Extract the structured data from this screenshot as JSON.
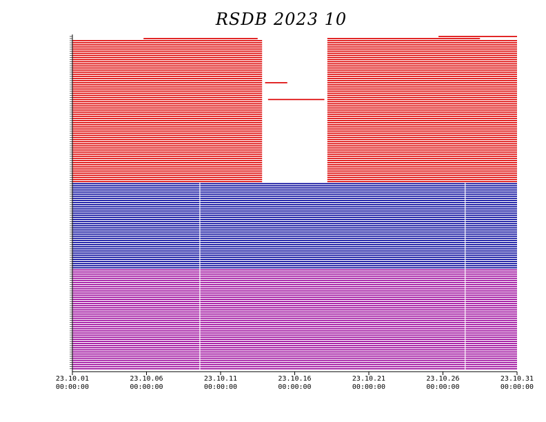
{
  "chart_data": {
    "type": "bar",
    "title": "RSDB  2023  10",
    "x_range": [
      "2023-10-01",
      "2023-10-31"
    ],
    "x_ticks": [
      {
        "date": "2023-10-01",
        "line1": "23.10.01",
        "line2": "00:00:00"
      },
      {
        "date": "2023-10-06",
        "line1": "23.10.06",
        "line2": "00:00:00"
      },
      {
        "date": "2023-10-11",
        "line1": "23.10.11",
        "line2": "00:00:00"
      },
      {
        "date": "2023-10-16",
        "line1": "23.10.16",
        "line2": "00:00:00"
      },
      {
        "date": "2023-10-21",
        "line1": "23.10.21",
        "line2": "00:00:00"
      },
      {
        "date": "2023-10-26",
        "line1": "23.10.26",
        "line2": "00:00:00"
      },
      {
        "date": "2023-10-31",
        "line1": "23.10.31",
        "line2": "00:00:00"
      }
    ],
    "groups": [
      {
        "color": "#dd0000",
        "rows": 70,
        "default_intervals": [
          [
            "2023-10-01",
            "2023-10-13.8"
          ],
          [
            "2023-10-18.2",
            "2023-10-31"
          ]
        ],
        "special_rows": [
          {
            "row": 0,
            "intervals": [
              [
                "2023-10-25.7",
                "2023-10-31"
              ]
            ]
          },
          {
            "row": 1,
            "intervals": [
              [
                "2023-10-05.8",
                "2023-10-13.5"
              ],
              [
                "2023-10-18.2",
                "2023-10-28.5"
              ]
            ]
          },
          {
            "row": 22,
            "intervals": [
              [
                "2023-10-01",
                "2023-10-13.8"
              ],
              [
                "2023-10-14",
                "2023-10-15.5"
              ],
              [
                "2023-10-18.2",
                "2023-10-31"
              ]
            ]
          },
          {
            "row": 30,
            "intervals": [
              [
                "2023-10-01",
                "2023-10-13.8"
              ],
              [
                "2023-10-14.2",
                "2023-10-18"
              ],
              [
                "2023-10-18.2",
                "2023-10-31"
              ]
            ]
          }
        ]
      },
      {
        "color": "#000099",
        "rows": 41,
        "default_intervals": [
          [
            "2023-10-01",
            "2023-10-31"
          ]
        ]
      },
      {
        "color": "#990099",
        "rows": 48,
        "default_intervals": [
          [
            "2023-10-01",
            "2023-10-31"
          ]
        ]
      }
    ],
    "gap_vertical_lines": [
      "2023-10-09.6",
      "2023-10-27.5"
    ]
  }
}
